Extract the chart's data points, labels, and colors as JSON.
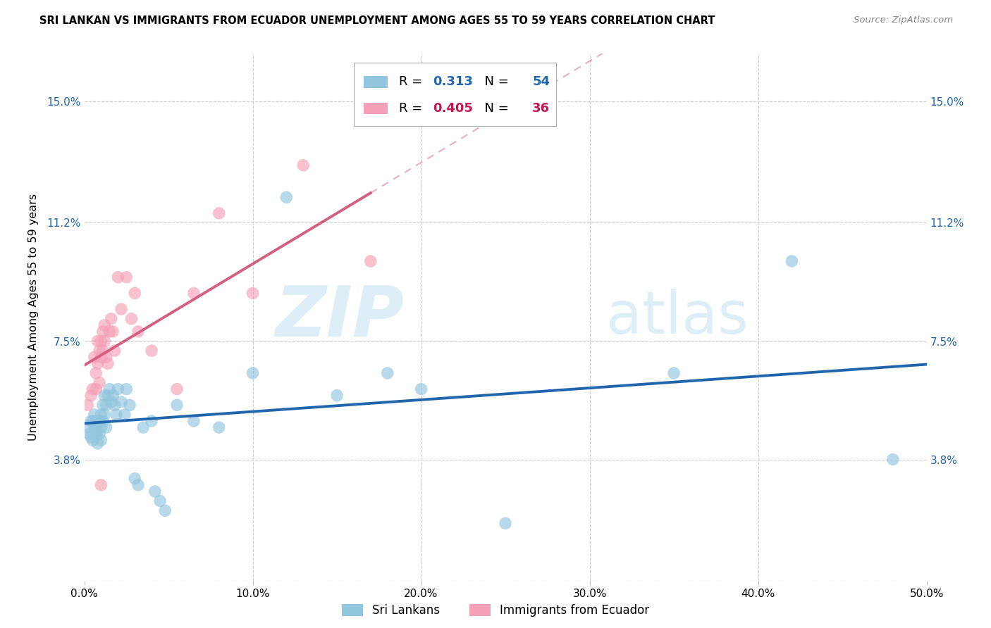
{
  "title": "SRI LANKAN VS IMMIGRANTS FROM ECUADOR UNEMPLOYMENT AMONG AGES 55 TO 59 YEARS CORRELATION CHART",
  "source": "Source: ZipAtlas.com",
  "ylabel": "Unemployment Among Ages 55 to 59 years",
  "xmin": 0.0,
  "xmax": 0.5,
  "ymin": 0.0,
  "ymax": 0.165,
  "yticks": [
    0.0,
    0.038,
    0.075,
    0.112,
    0.15
  ],
  "ytick_labels": [
    "",
    "3.8%",
    "7.5%",
    "11.2%",
    "15.0%"
  ],
  "xticks": [
    0.0,
    0.1,
    0.2,
    0.3,
    0.4,
    0.5
  ],
  "xtick_labels": [
    "0.0%",
    "10.0%",
    "20.0%",
    "30.0%",
    "40.0%",
    "50.0%"
  ],
  "sri_R": 0.313,
  "sri_N": 54,
  "ecu_R": 0.405,
  "ecu_N": 36,
  "sri_color": "#92c5de",
  "ecu_color": "#f4a0b8",
  "sri_line_color": "#2166ac",
  "ecu_line_color": "#d46080",
  "sri_R_color": "#2166ac",
  "ecu_R_color": "#c0184f",
  "watermark_color": "#d0e8f5",
  "sri_x": [
    0.002,
    0.003,
    0.004,
    0.004,
    0.005,
    0.005,
    0.006,
    0.006,
    0.007,
    0.007,
    0.008,
    0.008,
    0.008,
    0.009,
    0.009,
    0.01,
    0.01,
    0.01,
    0.011,
    0.011,
    0.012,
    0.012,
    0.013,
    0.013,
    0.014,
    0.015,
    0.016,
    0.017,
    0.018,
    0.019,
    0.02,
    0.022,
    0.024,
    0.025,
    0.027,
    0.03,
    0.032,
    0.035,
    0.04,
    0.042,
    0.045,
    0.048,
    0.055,
    0.065,
    0.08,
    0.1,
    0.12,
    0.15,
    0.18,
    0.2,
    0.25,
    0.35,
    0.42,
    0.48
  ],
  "sri_y": [
    0.048,
    0.046,
    0.05,
    0.045,
    0.05,
    0.044,
    0.052,
    0.048,
    0.05,
    0.046,
    0.05,
    0.047,
    0.043,
    0.05,
    0.046,
    0.052,
    0.048,
    0.044,
    0.055,
    0.05,
    0.058,
    0.052,
    0.055,
    0.048,
    0.058,
    0.06,
    0.056,
    0.058,
    0.055,
    0.052,
    0.06,
    0.056,
    0.052,
    0.06,
    0.055,
    0.032,
    0.03,
    0.048,
    0.05,
    0.028,
    0.025,
    0.022,
    0.055,
    0.05,
    0.048,
    0.065,
    0.12,
    0.058,
    0.065,
    0.06,
    0.018,
    0.065,
    0.1,
    0.038
  ],
  "ecu_x": [
    0.002,
    0.004,
    0.005,
    0.006,
    0.007,
    0.007,
    0.008,
    0.008,
    0.009,
    0.009,
    0.01,
    0.01,
    0.01,
    0.011,
    0.011,
    0.012,
    0.012,
    0.013,
    0.014,
    0.015,
    0.016,
    0.017,
    0.018,
    0.02,
    0.022,
    0.025,
    0.028,
    0.03,
    0.032,
    0.04,
    0.055,
    0.065,
    0.08,
    0.1,
    0.13,
    0.17
  ],
  "ecu_y": [
    0.055,
    0.058,
    0.06,
    0.07,
    0.065,
    0.06,
    0.075,
    0.068,
    0.072,
    0.062,
    0.075,
    0.07,
    0.03,
    0.078,
    0.072,
    0.08,
    0.075,
    0.07,
    0.068,
    0.078,
    0.082,
    0.078,
    0.072,
    0.095,
    0.085,
    0.095,
    0.082,
    0.09,
    0.078,
    0.072,
    0.06,
    0.09,
    0.115,
    0.09,
    0.13,
    0.1
  ]
}
